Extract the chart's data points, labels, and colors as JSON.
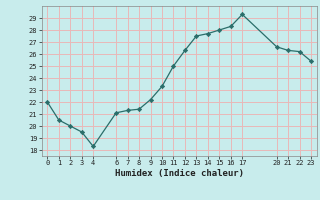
{
  "x": [
    0,
    1,
    2,
    3,
    4,
    6,
    7,
    8,
    9,
    10,
    11,
    12,
    13,
    14,
    15,
    16,
    17,
    20,
    21,
    22,
    23
  ],
  "y": [
    22,
    20.5,
    20,
    19.5,
    18.3,
    21.1,
    21.3,
    21.4,
    22.2,
    23.3,
    25.0,
    26.3,
    27.5,
    27.7,
    28.0,
    28.3,
    29.3,
    26.6,
    26.3,
    26.2,
    25.4
  ],
  "line_color": "#2a6e6a",
  "marker_color": "#2a6e6a",
  "bg_color": "#c8ecec",
  "grid_color": "#e8b8b8",
  "xlabel": "Humidex (Indice chaleur)",
  "yticks": [
    18,
    19,
    20,
    21,
    22,
    23,
    24,
    25,
    26,
    27,
    28,
    29
  ],
  "xticks": [
    0,
    1,
    2,
    3,
    4,
    6,
    7,
    8,
    9,
    10,
    11,
    12,
    13,
    14,
    15,
    16,
    17,
    20,
    21,
    22,
    23
  ],
  "ylim": [
    17.5,
    30.0
  ],
  "xlim": [
    -0.5,
    23.5
  ]
}
